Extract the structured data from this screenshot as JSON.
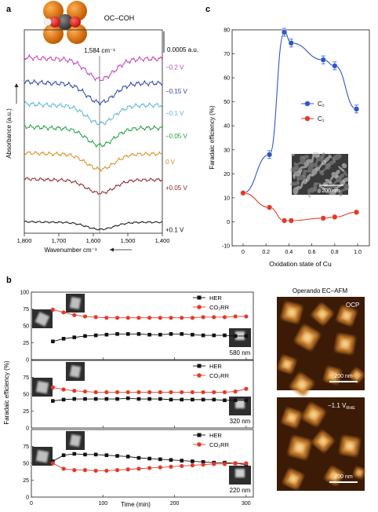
{
  "panel_labels": {
    "a": "a",
    "b": "b",
    "c": "c"
  },
  "colors": {
    "c2": "#2f56c9",
    "c1": "#e23a2a",
    "her": "#111111",
    "co2rr": "#e23a2a",
    "afm_dark": "#3b1b06",
    "afm_light": "#e6a24a"
  },
  "chart_data": [
    {
      "id": "a",
      "type": "line",
      "title": "OC–COH",
      "xlabel": "Wavenumber cm⁻¹",
      "ylabel": "Absorbance (a.u.)",
      "xlim": [
        1800,
        1400
      ],
      "xticks": [
        "1,800",
        "1,700",
        "1,600",
        "1,500",
        "1,400"
      ],
      "annotation": "1,584 cm⁻¹",
      "scale_bar": "0.0005 a.u.",
      "series": [
        {
          "name": "−0.2 V",
          "color": "#c03fb6"
        },
        {
          "name": "−0.15 V",
          "color": "#2942a6"
        },
        {
          "name": "−0.1 V",
          "color": "#5ab3d6"
        },
        {
          "name": "−0.05 V",
          "color": "#1e9e3a"
        },
        {
          "name": "0 V",
          "color": "#d88a1c"
        },
        {
          "name": "+0.05 V",
          "color": "#8f1e1e"
        },
        {
          "name": "+0.1 V",
          "color": "#111111"
        }
      ]
    },
    {
      "id": "c",
      "type": "line",
      "xlabel": "Oxidation state of Cu",
      "ylabel": "Faradaic efficiency (%)",
      "ylim": [
        -10,
        80
      ],
      "xlim": [
        -0.1,
        1.05
      ],
      "xticks": [
        0,
        0.2,
        0.4,
        0.6,
        0.8,
        1.0
      ],
      "yticks": [
        -10,
        0,
        10,
        20,
        30,
        40,
        50,
        60,
        70,
        80
      ],
      "legend": "right",
      "inset_scale": "200 nm",
      "series": [
        {
          "name": "C₂",
          "x": [
            0,
            0.23,
            0.36,
            0.42,
            0.7,
            0.8,
            0.99
          ],
          "y": [
            12,
            28,
            79,
            74.5,
            67.5,
            65,
            47
          ]
        },
        {
          "name": "C₁",
          "x": [
            0,
            0.23,
            0.36,
            0.42,
            0.7,
            0.8,
            0.99
          ],
          "y": [
            12,
            6,
            0.5,
            0.5,
            1.5,
            2,
            4
          ]
        }
      ]
    },
    {
      "id": "b",
      "type": "line",
      "xlabel": "Time (min)",
      "ylabel": "Faradaic efficiency (%)",
      "xlim": [
        0,
        310
      ],
      "ylim": [
        0,
        100
      ],
      "xticks": [
        0,
        100,
        200,
        300
      ],
      "yticks": [
        0,
        25,
        50,
        75,
        100
      ],
      "subplots": [
        {
          "size": "580 nm",
          "series": [
            {
              "name": "HER",
              "y": [
                27,
                31,
                33,
                35,
                36,
                37,
                38,
                38,
                38,
                37,
                37,
                38,
                38,
                37,
                36,
                36,
                36,
                35,
                35
              ]
            },
            {
              "name": "CO₂RR",
              "y": [
                74,
                70,
                66,
                64,
                63,
                62,
                62,
                62,
                62,
                62,
                62,
                62,
                62,
                62,
                63,
                63,
                63,
                64,
                64
              ]
            }
          ]
        },
        {
          "size": "320 nm",
          "series": [
            {
              "name": "HER",
              "y": [
                40,
                42,
                43,
                43,
                43,
                43,
                43,
                44,
                43,
                43,
                43,
                42,
                42,
                42,
                42,
                42,
                41,
                41,
                41
              ]
            },
            {
              "name": "CO₂RR",
              "y": [
                60,
                57,
                55,
                54,
                53,
                53,
                53,
                53,
                53,
                53,
                53,
                53,
                53,
                53,
                53,
                53,
                53,
                54,
                58
              ]
            }
          ]
        },
        {
          "size": "220 nm",
          "series": [
            {
              "name": "HER",
              "y": [
                53,
                62,
                64,
                63,
                63,
                62,
                61,
                60,
                58,
                57,
                56,
                55,
                54,
                53,
                52,
                51,
                51,
                50,
                48
              ]
            },
            {
              "name": "CO₂RR",
              "y": [
                50,
                42,
                40,
                40,
                39,
                39,
                40,
                41,
                42,
                43,
                44,
                45,
                46,
                47,
                48,
                49,
                49,
                50,
                50
              ]
            }
          ]
        }
      ],
      "x": [
        30,
        45,
        60,
        75,
        90,
        105,
        120,
        135,
        150,
        165,
        180,
        195,
        210,
        225,
        240,
        255,
        270,
        285,
        300
      ],
      "legend": [
        "HER",
        "CO₂RR"
      ]
    }
  ],
  "afm": {
    "title": "Operando EC–AFM",
    "top_label": "OCP",
    "bottom_label": "−1.1 V",
    "bottom_label_sub": "RHE",
    "scale": "200 nm"
  }
}
